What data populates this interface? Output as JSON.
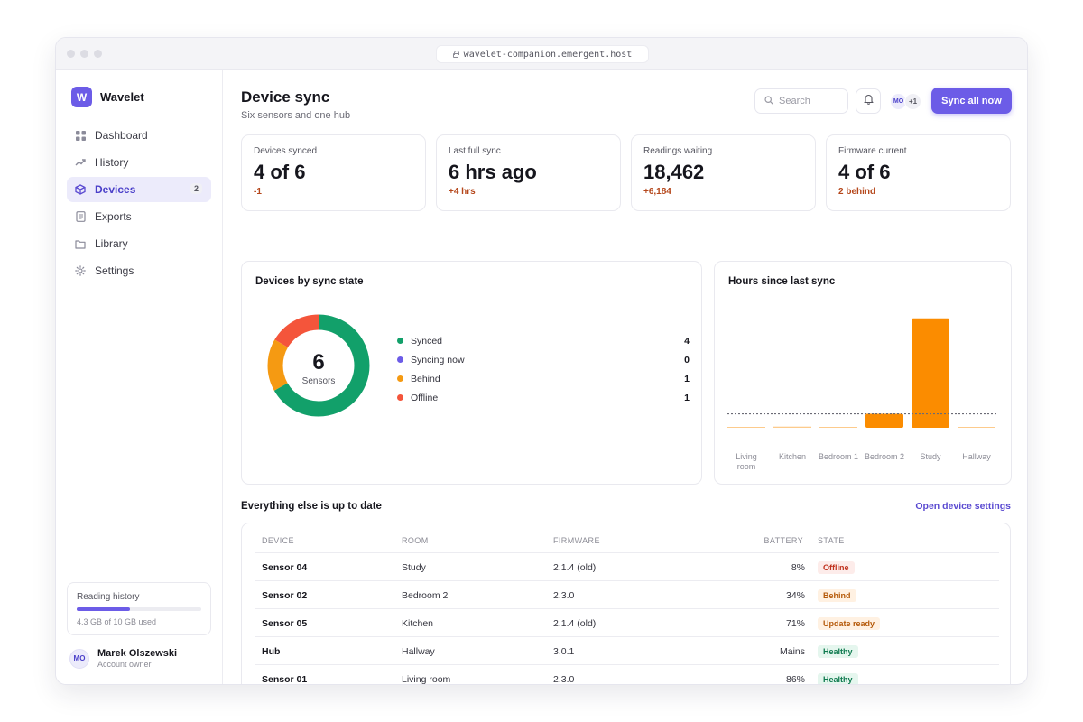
{
  "browser": {
    "url": "wavelet-companion.emergent.host"
  },
  "app": {
    "name": "Wavelet",
    "logo_letter": "W"
  },
  "sidebar": {
    "items": [
      {
        "label": "Dashboard",
        "icon": "grid-icon"
      },
      {
        "label": "History",
        "icon": "trend-icon"
      },
      {
        "label": "Devices",
        "icon": "cube-icon",
        "badge": "2",
        "active": true
      },
      {
        "label": "Exports",
        "icon": "document-icon"
      },
      {
        "label": "Library",
        "icon": "folder-icon"
      },
      {
        "label": "Settings",
        "icon": "gear-icon"
      }
    ],
    "storage": {
      "title": "Reading history",
      "used_text": "4.3 GB of 10 GB used",
      "used_fraction": 0.43
    },
    "user": {
      "initials": "MO",
      "name": "Marek Olszewski",
      "role": "Account owner"
    }
  },
  "header": {
    "title": "Device sync",
    "subtitle": "Six sensors and one hub",
    "search_placeholder": "Search",
    "presence": {
      "initials": "MO",
      "more": "+1"
    },
    "sync_button": "Sync all now"
  },
  "stats": [
    {
      "label": "Devices synced",
      "value": "4 of 6",
      "delta": "-1"
    },
    {
      "label": "Last full sync",
      "value": "6 hrs ago",
      "delta": "+4 hrs"
    },
    {
      "label": "Readings waiting",
      "value": "18,462",
      "delta": "+6,184"
    },
    {
      "label": "Firmware current",
      "value": "4 of 6",
      "delta": "2 behind"
    }
  ],
  "chart_data": [
    {
      "type": "pie",
      "title": "Devices by sync state",
      "center_value": "6",
      "center_label": "Sensors",
      "categories": [
        "Synced",
        "Syncing now",
        "Behind",
        "Offline"
      ],
      "values": [
        4,
        0,
        1,
        1
      ],
      "colors": [
        "#12a06a",
        "#6c5ce7",
        "#f59a12",
        "#f4553b"
      ]
    },
    {
      "type": "bar",
      "title": "Hours since last sync",
      "categories": [
        "Living room",
        "Kitchen",
        "Bedroom 1",
        "Bedroom 2",
        "Study",
        "Hallway"
      ],
      "values": [
        0,
        0.1,
        0,
        1.2,
        9.4,
        0
      ],
      "threshold": 1.2,
      "ylim": [
        0,
        10
      ],
      "color": "#fb8c00",
      "xlabel": "",
      "ylabel": ""
    }
  ],
  "table": {
    "section_title": "Everything else is up to date",
    "link": "Open device settings",
    "columns": [
      "DEVICE",
      "ROOM",
      "FIRMWARE",
      "BATTERY",
      "STATE"
    ],
    "rows": [
      {
        "device": "Sensor 04",
        "room": "Study",
        "firmware": "2.1.4 (old)",
        "battery": "8%",
        "state": "Offline",
        "state_bg": "#fdecea",
        "state_fg": "#c0321e"
      },
      {
        "device": "Sensor 02",
        "room": "Bedroom 2",
        "firmware": "2.3.0",
        "battery": "34%",
        "state": "Behind",
        "state_bg": "#fff1e2",
        "state_fg": "#b55a0a"
      },
      {
        "device": "Sensor 05",
        "room": "Kitchen",
        "firmware": "2.1.4 (old)",
        "battery": "71%",
        "state": "Update ready",
        "state_bg": "#fff1e2",
        "state_fg": "#b55a0a"
      },
      {
        "device": "Hub",
        "room": "Hallway",
        "firmware": "3.0.1",
        "battery": "Mains",
        "state": "Healthy",
        "state_bg": "#e5f6ee",
        "state_fg": "#0f7a4f"
      },
      {
        "device": "Sensor 01",
        "room": "Living room",
        "firmware": "2.3.0",
        "battery": "86%",
        "state": "Healthy",
        "state_bg": "#e5f6ee",
        "state_fg": "#0f7a4f"
      }
    ]
  }
}
